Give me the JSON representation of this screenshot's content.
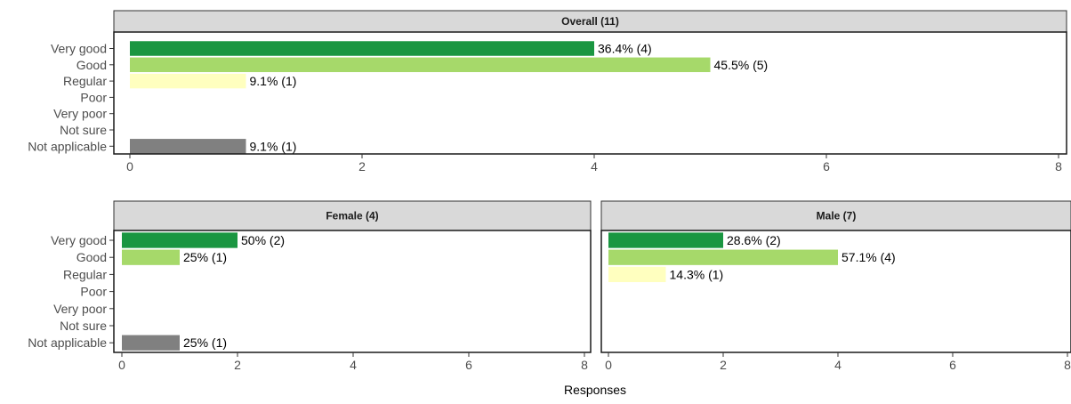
{
  "x_axis_label": "Responses",
  "chart_data": [
    {
      "type": "bar",
      "orientation": "horizontal",
      "title": "Overall (11)",
      "categories": [
        "Very good",
        "Good",
        "Regular",
        "Poor",
        "Very poor",
        "Not sure",
        "Not applicable"
      ],
      "values": [
        4,
        5,
        1,
        0,
        0,
        0,
        1
      ],
      "data_labels": [
        "36.4% (4)",
        "45.5% (5)",
        "9.1% (1)",
        "",
        "",
        "",
        "9.1% (1)"
      ],
      "colors": [
        "#1a9641",
        "#a6d96a",
        "#ffffbf",
        "#fdae61",
        "#d7191c",
        "#bdbdbd",
        "#808080"
      ],
      "xlim": [
        0,
        8
      ],
      "xticks": [
        0,
        2,
        4,
        6,
        8
      ],
      "xlabel": "",
      "ylabel": "",
      "grid": false
    },
    {
      "type": "bar",
      "orientation": "horizontal",
      "title": "Female (4)",
      "categories": [
        "Very good",
        "Good",
        "Regular",
        "Poor",
        "Very poor",
        "Not sure",
        "Not applicable"
      ],
      "values": [
        2,
        1,
        0,
        0,
        0,
        0,
        1
      ],
      "data_labels": [
        "50% (2)",
        "25% (1)",
        "",
        "",
        "",
        "",
        "25% (1)"
      ],
      "colors": [
        "#1a9641",
        "#a6d96a",
        "#ffffbf",
        "#fdae61",
        "#d7191c",
        "#bdbdbd",
        "#808080"
      ],
      "xlim": [
        0,
        8
      ],
      "xticks": [
        0,
        2,
        4,
        6,
        8
      ],
      "xlabel": "Responses",
      "ylabel": "",
      "grid": false
    },
    {
      "type": "bar",
      "orientation": "horizontal",
      "title": "Male (7)",
      "categories": [
        "Very good",
        "Good",
        "Regular",
        "Poor",
        "Very poor",
        "Not sure",
        "Not applicable"
      ],
      "values": [
        2,
        4,
        1,
        0,
        0,
        0,
        0
      ],
      "data_labels": [
        "28.6% (2)",
        "57.1% (4)",
        "14.3% (1)",
        "",
        "",
        "",
        ""
      ],
      "colors": [
        "#1a9641",
        "#a6d96a",
        "#ffffbf",
        "#fdae61",
        "#d7191c",
        "#bdbdbd",
        "#808080"
      ],
      "xlim": [
        0,
        8
      ],
      "xticks": [
        0,
        2,
        4,
        6,
        8
      ],
      "xlabel": "Responses",
      "ylabel": "",
      "grid": false
    }
  ]
}
